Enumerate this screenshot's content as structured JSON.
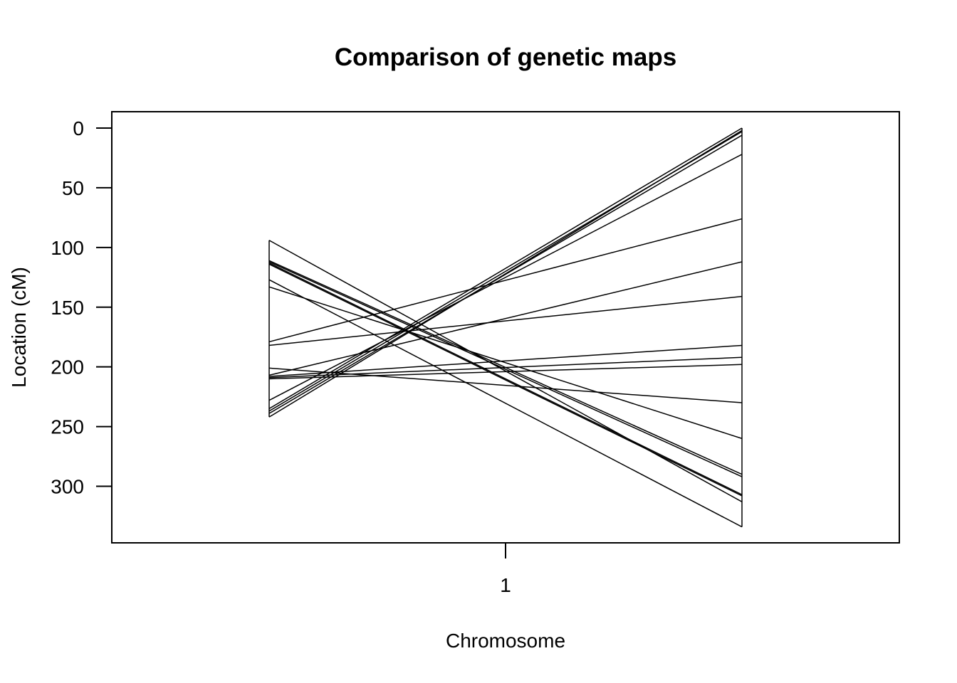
{
  "chart_data": {
    "type": "line",
    "title": "Comparison of genetic maps",
    "xlabel": "Chromosome",
    "ylabel": "Location (cM)",
    "x_ticks": [
      "1"
    ],
    "y_ticks": [
      "0",
      "50",
      "100",
      "150",
      "200",
      "250",
      "300"
    ],
    "y_tick_values": [
      0,
      50,
      100,
      150,
      200,
      250,
      300
    ],
    "ylim": [
      0,
      334
    ],
    "y_reversed": true,
    "grid": false,
    "colors": {
      "lines": "#000000",
      "frame": "#000000",
      "background": "#ffffff"
    },
    "map_range_left": [
      94,
      242
    ],
    "map_range_right": [
      0,
      334
    ],
    "connections": [
      {
        "left": 94,
        "right": 313
      },
      {
        "left": 111,
        "right": 290
      },
      {
        "left": 112,
        "right": 292
      },
      {
        "left": 113,
        "right": 307
      },
      {
        "left": 114,
        "right": 308
      },
      {
        "left": 127,
        "right": 334
      },
      {
        "left": 133,
        "right": 260
      },
      {
        "left": 179,
        "right": 76
      },
      {
        "left": 182,
        "right": 141
      },
      {
        "left": 201,
        "right": 230
      },
      {
        "left": 207,
        "right": 112
      },
      {
        "left": 208,
        "right": 182
      },
      {
        "left": 209,
        "right": 192
      },
      {
        "left": 210,
        "right": 198
      },
      {
        "left": 228,
        "right": 22
      },
      {
        "left": 235,
        "right": 0
      },
      {
        "left": 237,
        "right": 3
      },
      {
        "left": 239,
        "right": 6
      },
      {
        "left": 242,
        "right": 2
      }
    ]
  }
}
